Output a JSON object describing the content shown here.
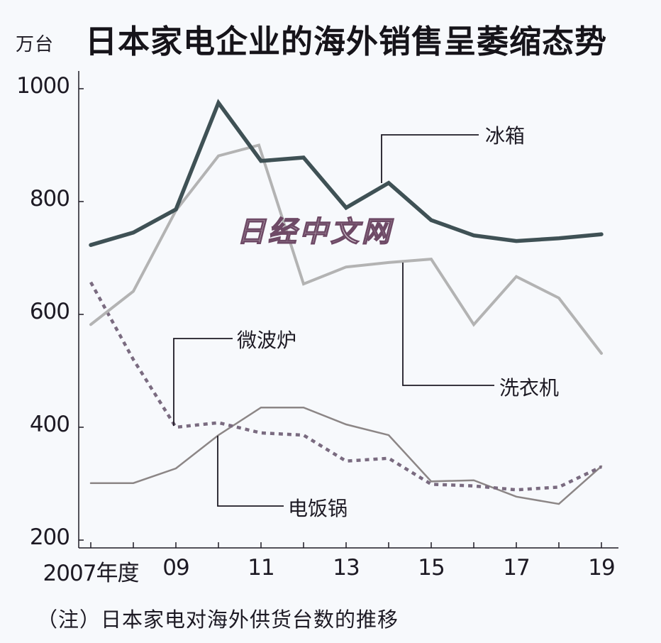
{
  "header": {
    "unit": "万台",
    "title": "日本家电企业的海外销售呈萎缩态势"
  },
  "watermark": "日经中文网",
  "footnote": "（注）日本家电对海外供货台数的推移",
  "colors": {
    "fridge": "#3f5155",
    "washer": "#b3b3b3",
    "microwave": "#7a6b80",
    "rice_cooker": "#8c8686",
    "axis": "#1d1a24",
    "background": "#f7f9fc"
  },
  "chart_data": {
    "type": "line",
    "title": "日本家电企业的海外销售呈萎缩态势",
    "ylabel": "万台",
    "xlabel": "",
    "ylim": [
      200,
      1000
    ],
    "yticks": [
      200,
      400,
      600,
      800,
      1000
    ],
    "x": [
      2007,
      2008,
      2009,
      2010,
      2011,
      2012,
      2013,
      2014,
      2015,
      2016,
      2017,
      2018,
      2019
    ],
    "xtick_labels": [
      {
        "year": 2007,
        "label": "2007年度"
      },
      {
        "year": 2009,
        "label": "09"
      },
      {
        "year": 2011,
        "label": "11"
      },
      {
        "year": 2013,
        "label": "13"
      },
      {
        "year": 2015,
        "label": "15"
      },
      {
        "year": 2017,
        "label": "17"
      },
      {
        "year": 2019,
        "label": "19"
      }
    ],
    "grid": false,
    "legend": "inline callout labels",
    "series": [
      {
        "name": "冰箱",
        "style": "solid-thick",
        "values": [
          723,
          745,
          786,
          975,
          872,
          878,
          789,
          833,
          767,
          740,
          730,
          735,
          742
        ]
      },
      {
        "name": "洗衣机",
        "style": "solid-light",
        "values": [
          582,
          641,
          784,
          881,
          900,
          654,
          684,
          692,
          698,
          582,
          667,
          629,
          531
        ]
      },
      {
        "name": "微波炉",
        "style": "dashed",
        "values": [
          657,
          520,
          400,
          408,
          390,
          386,
          340,
          345,
          299,
          296,
          289,
          294,
          330
        ]
      },
      {
        "name": "电饭锅",
        "style": "solid-thin",
        "values": [
          301,
          301,
          327,
          386,
          435,
          435,
          405,
          386,
          304,
          306,
          277,
          264,
          331
        ]
      }
    ],
    "annotations": [
      {
        "series": "冰箱",
        "label": "冰箱",
        "anchor_year": 2014
      },
      {
        "series": "洗衣机",
        "label": "洗衣机",
        "anchor_year": 2014.4
      },
      {
        "series": "微波炉",
        "label": "微波炉",
        "anchor_year": 2009
      },
      {
        "series": "电饭锅",
        "label": "电饭锅",
        "anchor_year": 2010
      }
    ],
    "footnote": "（注）日本家电对海外供货台数的推移"
  }
}
